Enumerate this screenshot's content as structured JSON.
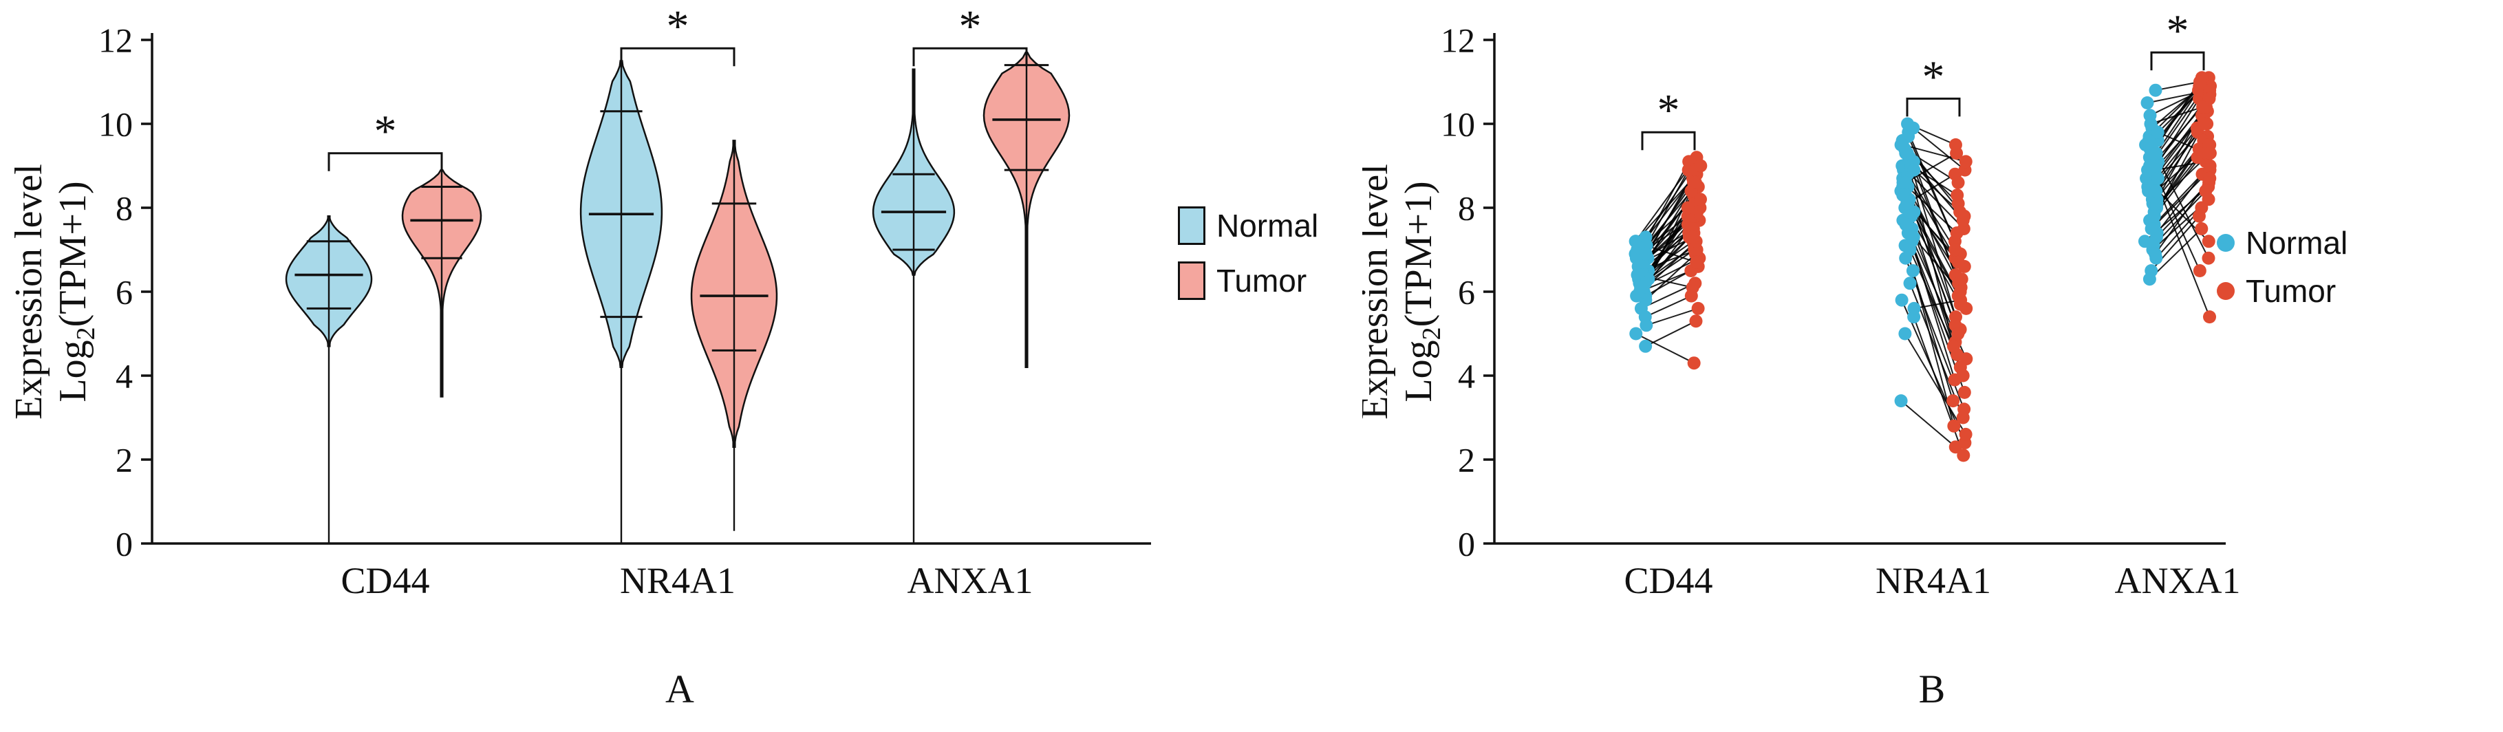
{
  "colors": {
    "normal_fill": "#a8d9e9",
    "normal_point": "#3fb4d9",
    "tumor_fill": "#f4a69e",
    "tumor_point": "#e04b31",
    "stroke": "#111111",
    "line": "#000000"
  },
  "legend": {
    "normal_label": "Normal",
    "tumor_label": "Tumor"
  },
  "axis": {
    "ylabel_line1": "Expression level",
    "ylabel_log": "Log",
    "ylabel_sub": "2",
    "ylabel_rest": "(TPM+1)",
    "yticks": [
      0,
      2,
      4,
      6,
      8,
      10,
      12
    ],
    "ylim": [
      0,
      12
    ]
  },
  "panels": {
    "a_label": "A",
    "b_label": "B"
  },
  "significance_symbol": "*",
  "chart_data": [
    {
      "type": "violin",
      "panel": "A",
      "title": "",
      "xlabel": "",
      "ylabel": "Expression level Log2(TPM+1)",
      "categories": [
        "CD44",
        "NR4A1",
        "ANXA1"
      ],
      "ylim": [
        0,
        12
      ],
      "series": [
        {
          "name": "Normal",
          "violins": [
            {
              "min": 4.7,
              "max": 7.8,
              "mean": 6.4,
              "err_low": 5.6,
              "err_high": 7.2,
              "tail_to": 0,
              "mode": 6.3,
              "spread": 0.75,
              "relwidth": 1.0
            },
            {
              "min": 4.2,
              "max": 11.5,
              "mean": 7.85,
              "err_low": 5.4,
              "err_high": 10.3,
              "tail_to": 0,
              "mode": 7.9,
              "spread": 1.8,
              "relwidth": 0.95
            },
            {
              "min": 6.4,
              "max": 11.3,
              "mean": 7.9,
              "err_low": 7.0,
              "err_high": 8.8,
              "tail_to": 0,
              "mode": 7.9,
              "spread": 0.85,
              "relwidth": 0.95
            }
          ]
        },
        {
          "name": "Tumor",
          "violins": [
            {
              "min": 3.5,
              "max": 8.9,
              "mean": 7.7,
              "err_low": 6.8,
              "err_high": 8.5,
              "tail_to": null,
              "mode": 7.8,
              "spread": 0.8,
              "relwidth": 0.92
            },
            {
              "min": 2.3,
              "max": 9.6,
              "mean": 5.9,
              "err_low": 4.6,
              "err_high": 8.1,
              "tail_to": 0.3,
              "mode": 5.9,
              "spread": 1.5,
              "relwidth": 1.0
            },
            {
              "min": 4.2,
              "max": 11.7,
              "mean": 10.1,
              "err_low": 8.9,
              "err_high": 11.4,
              "tail_to": null,
              "mode": 10.2,
              "spread": 0.95,
              "relwidth": 1.0
            }
          ]
        }
      ],
      "significance": [
        {
          "category": "CD44",
          "y": 9.3,
          "symbol": "*"
        },
        {
          "category": "NR4A1",
          "y": 11.8,
          "symbol": "*"
        },
        {
          "category": "ANXA1",
          "y": 11.8,
          "symbol": "*"
        }
      ]
    },
    {
      "type": "paired-scatter",
      "panel": "B",
      "title": "",
      "xlabel": "",
      "ylabel": "Expression level Log2(TPM+1)",
      "categories": [
        "CD44",
        "NR4A1",
        "ANXA1"
      ],
      "ylim": [
        0,
        12
      ],
      "series_names": [
        "Normal",
        "Tumor"
      ],
      "pairs": {
        "CD44": [
          [
            6.9,
            8.2
          ],
          [
            6.5,
            7.4
          ],
          [
            7.1,
            8.9
          ],
          [
            6.2,
            7.0
          ],
          [
            6.8,
            8.5
          ],
          [
            6.4,
            7.7
          ],
          [
            7.0,
            8.0
          ],
          [
            6.1,
            6.8
          ],
          [
            6.6,
            7.9
          ],
          [
            6.3,
            7.2
          ],
          [
            7.2,
            8.8
          ],
          [
            5.9,
            6.6
          ],
          [
            6.7,
            8.3
          ],
          [
            6.0,
            7.5
          ],
          [
            7.3,
            9.0
          ],
          [
            6.5,
            8.1
          ],
          [
            6.2,
            7.3
          ],
          [
            6.9,
            8.6
          ],
          [
            5.8,
            6.9
          ],
          [
            6.4,
            7.6
          ],
          [
            7.1,
            8.4
          ],
          [
            6.6,
            7.8
          ],
          [
            6.0,
            6.5
          ],
          [
            6.8,
            9.1
          ],
          [
            6.3,
            7.1
          ],
          [
            5.6,
            6.2
          ],
          [
            6.7,
            8.0
          ],
          [
            7.0,
            8.7
          ],
          [
            6.1,
            7.4
          ],
          [
            6.5,
            7.0
          ],
          [
            5.2,
            5.6
          ],
          [
            6.9,
            7.7
          ],
          [
            6.2,
            8.2
          ],
          [
            4.7,
            5.3
          ],
          [
            6.6,
            8.9
          ],
          [
            6.4,
            6.1
          ],
          [
            7.2,
            9.2
          ],
          [
            5.9,
            7.2
          ],
          [
            6.8,
            7.5
          ],
          [
            6.0,
            8.4
          ],
          [
            5.0,
            4.3
          ],
          [
            6.3,
            7.8
          ],
          [
            7.1,
            6.7
          ],
          [
            6.5,
            8.6
          ],
          [
            5.4,
            5.9
          ],
          [
            6.7,
            7.3
          ],
          [
            6.1,
            8.0
          ],
          [
            6.9,
            9.0
          ]
        ],
        "NR4A1": [
          [
            9.8,
            7.2
          ],
          [
            8.5,
            5.1
          ],
          [
            9.2,
            6.4
          ],
          [
            7.8,
            4.2
          ],
          [
            8.9,
            6.8
          ],
          [
            9.5,
            8.1
          ],
          [
            7.2,
            3.9
          ],
          [
            8.3,
            5.6
          ],
          [
            9.0,
            7.5
          ],
          [
            7.5,
            4.8
          ],
          [
            8.7,
            6.1
          ],
          [
            9.3,
            5.4
          ],
          [
            6.8,
            3.2
          ],
          [
            8.1,
            6.6
          ],
          [
            9.6,
            7.8
          ],
          [
            7.0,
            4.5
          ],
          [
            8.4,
            5.9
          ],
          [
            9.1,
            6.2
          ],
          [
            7.7,
            3.6
          ],
          [
            8.8,
            7.0
          ],
          [
            9.4,
            8.6
          ],
          [
            6.5,
            2.8
          ],
          [
            8.2,
            5.2
          ],
          [
            9.7,
            6.9
          ],
          [
            7.4,
            4.0
          ],
          [
            8.6,
            7.4
          ],
          [
            9.9,
            8.9
          ],
          [
            5.8,
            2.4
          ],
          [
            8.0,
            5.7
          ],
          [
            9.2,
            7.7
          ],
          [
            7.1,
            3.4
          ],
          [
            8.5,
            6.3
          ],
          [
            10.0,
            9.5
          ],
          [
            5.4,
            2.1
          ],
          [
            7.9,
            5.0
          ],
          [
            9.0,
            8.3
          ],
          [
            6.2,
            3.0
          ],
          [
            8.3,
            6.7
          ],
          [
            9.5,
            9.1
          ],
          [
            5.0,
            2.6
          ],
          [
            7.6,
            4.4
          ],
          [
            8.9,
            7.9
          ],
          [
            3.4,
            2.3
          ],
          [
            8.1,
            8.8
          ],
          [
            9.3,
            4.7
          ],
          [
            5.6,
            5.8
          ],
          [
            7.3,
            6.0
          ],
          [
            8.6,
            9.3
          ]
        ],
        "ANXA1": [
          [
            8.5,
            10.2
          ],
          [
            9.2,
            10.8
          ],
          [
            7.8,
            9.5
          ],
          [
            8.9,
            10.5
          ],
          [
            9.6,
            11.0
          ],
          [
            7.4,
            8.8
          ],
          [
            8.2,
            9.9
          ],
          [
            9.0,
            10.6
          ],
          [
            7.9,
            9.2
          ],
          [
            8.7,
            10.3
          ],
          [
            9.4,
            10.9
          ],
          [
            7.2,
            8.5
          ],
          [
            8.4,
            10.0
          ],
          [
            9.1,
            10.7
          ],
          [
            7.6,
            9.0
          ],
          [
            8.8,
            10.4
          ],
          [
            9.7,
            11.1
          ],
          [
            7.0,
            8.2
          ],
          [
            8.1,
            9.7
          ],
          [
            9.3,
            10.8
          ],
          [
            7.7,
            9.4
          ],
          [
            8.6,
            10.1
          ],
          [
            9.9,
            11.0
          ],
          [
            6.8,
            8.0
          ],
          [
            8.3,
            9.8
          ],
          [
            9.5,
            10.9
          ],
          [
            7.3,
            8.6
          ],
          [
            8.0,
            9.6
          ],
          [
            10.2,
            10.9
          ],
          [
            6.5,
            7.8
          ],
          [
            8.9,
            9.1
          ],
          [
            9.2,
            11.1
          ],
          [
            7.5,
            8.9
          ],
          [
            8.5,
            7.2
          ],
          [
            10.5,
            10.8
          ],
          [
            6.3,
            7.5
          ],
          [
            8.2,
            10.6
          ],
          [
            9.8,
            9.3
          ],
          [
            7.1,
            8.4
          ],
          [
            8.7,
            6.5
          ],
          [
            10.8,
            11.0
          ],
          [
            6.9,
            8.7
          ],
          [
            9.0,
            5.4
          ],
          [
            8.4,
            9.5
          ],
          [
            7.8,
            10.0
          ],
          [
            9.6,
            6.8
          ],
          [
            8.1,
            9.3
          ],
          [
            10.0,
            10.4
          ]
        ]
      },
      "significance": [
        {
          "category": "CD44",
          "y": 9.8,
          "symbol": "*"
        },
        {
          "category": "NR4A1",
          "y": 10.6,
          "symbol": "*"
        },
        {
          "category": "ANXA1",
          "y": 11.7,
          "symbol": "*"
        }
      ]
    }
  ]
}
